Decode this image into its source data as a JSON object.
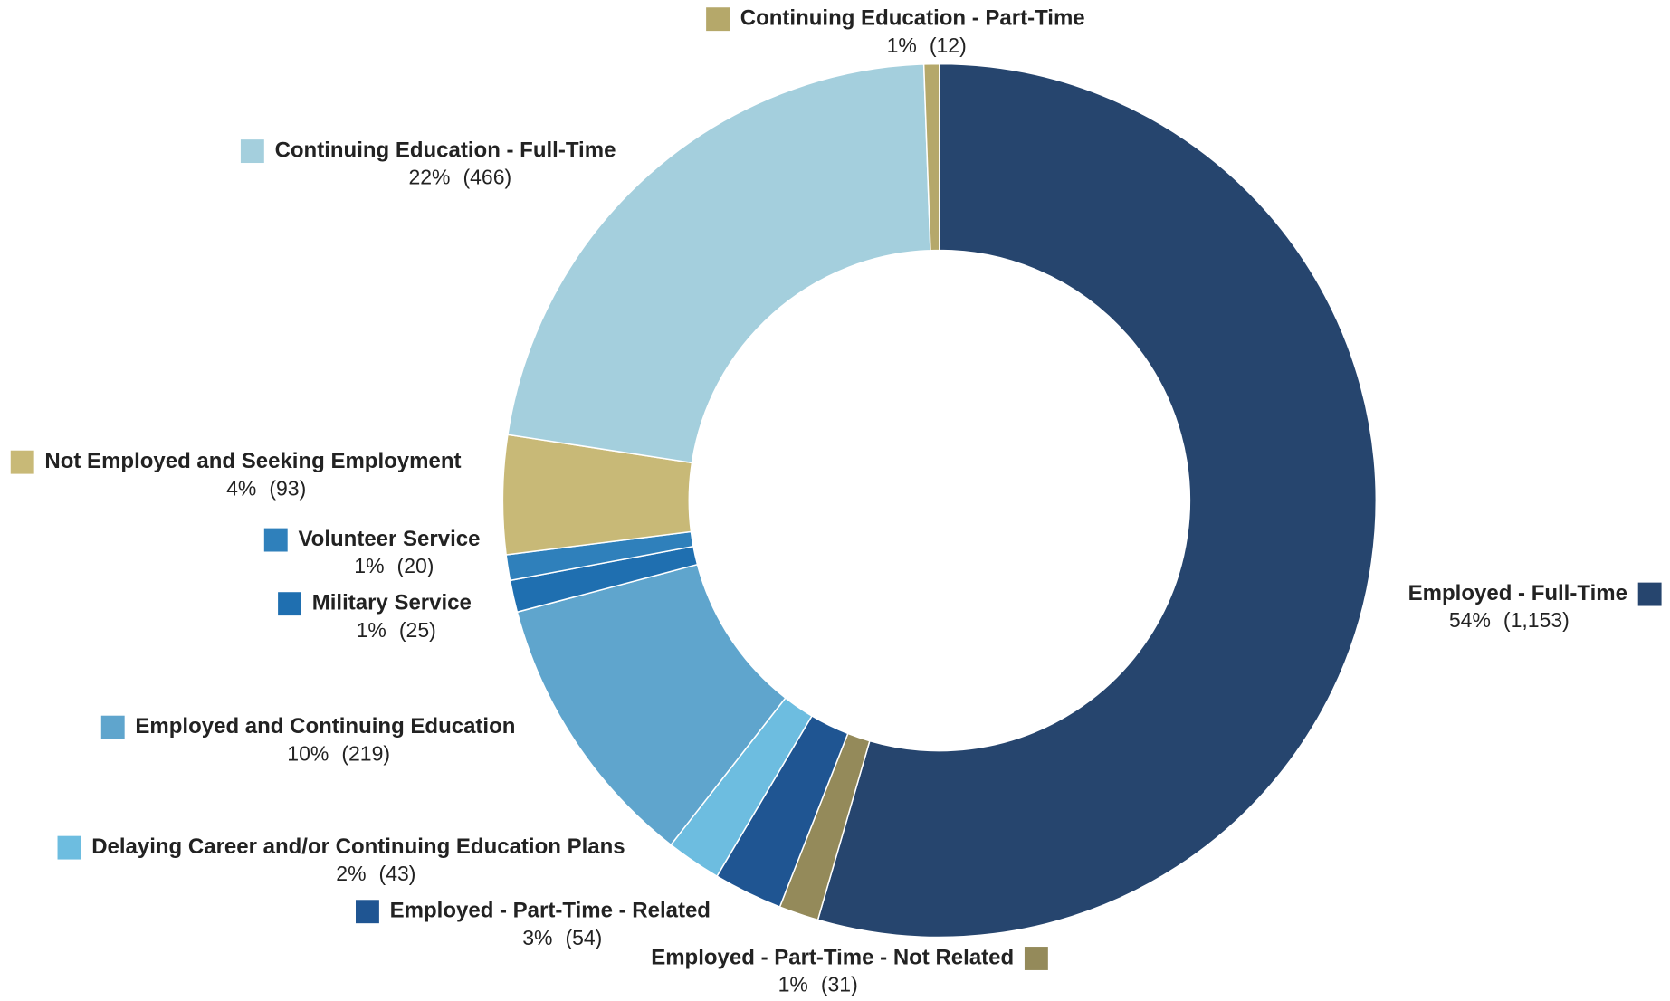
{
  "chart_data": {
    "type": "donut",
    "categories": [
      "Employed - Full-Time",
      "Employed - Part-Time - Not Related",
      "Employed - Part-Time - Related",
      "Delaying Career and/or Continuing Education Plans",
      "Employed and Continuing Education",
      "Military Service",
      "Volunteer Service",
      "Not Employed and Seeking Employment",
      "Continuing Education - Full-Time",
      "Continuing Education - Part-Time"
    ],
    "values": [
      1153,
      31,
      54,
      43,
      219,
      25,
      20,
      93,
      466,
      12
    ],
    "value_labels": [
      "(1,153)",
      "(31)",
      "(54)",
      "(43)",
      "(219)",
      "(25)",
      "(20)",
      "(93)",
      "(466)",
      "(12)"
    ],
    "percent_labels": [
      "54%",
      "1%",
      "3%",
      "2%",
      "10%",
      "1%",
      "1%",
      "4%",
      "22%",
      "1%"
    ],
    "colors": [
      "#26456e",
      "#948a5a",
      "#1f5592",
      "#6dbde0",
      "#5fa5cd",
      "#1f6fb0",
      "#2f80bb",
      "#c8b977",
      "#a4cfdd",
      "#b5a86a"
    ]
  }
}
